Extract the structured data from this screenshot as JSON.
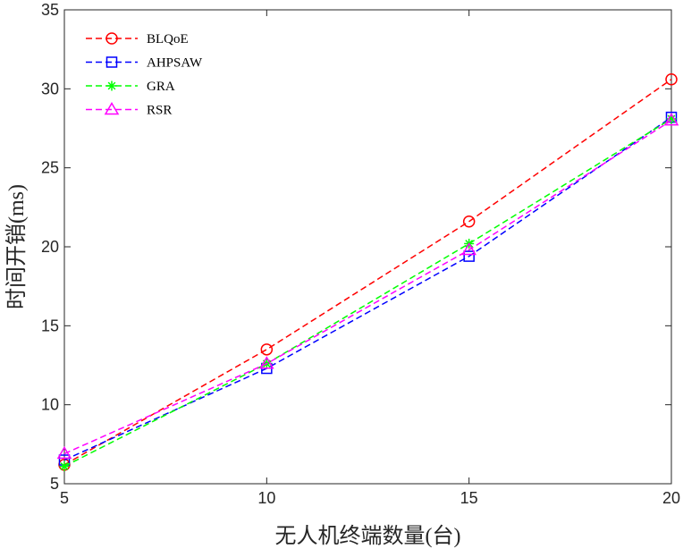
{
  "chart_data": {
    "type": "line",
    "xlabel": "无人机终端数量(台)",
    "ylabel": "时间开销(ms)",
    "x": [
      5,
      10,
      15,
      20
    ],
    "xticks": [
      5,
      10,
      15,
      20
    ],
    "yticks": [
      5,
      10,
      15,
      20,
      25,
      30,
      35
    ],
    "xlim": [
      5,
      20
    ],
    "ylim": [
      5,
      35
    ],
    "grid": false,
    "legend_position": "top-left",
    "series": [
      {
        "name": "BLQoE",
        "values": [
          6.2,
          13.5,
          21.6,
          30.6
        ],
        "color": "#ff0000",
        "marker": "circle"
      },
      {
        "name": "AHPSAW",
        "values": [
          6.5,
          12.3,
          19.4,
          28.2
        ],
        "color": "#0000ff",
        "marker": "square"
      },
      {
        "name": "GRA",
        "values": [
          6.1,
          12.6,
          20.2,
          28.1
        ],
        "color": "#00ff00",
        "marker": "star"
      },
      {
        "name": "RSR",
        "values": [
          6.9,
          12.6,
          19.8,
          28.0
        ],
        "color": "#ff00ff",
        "marker": "triangle"
      }
    ]
  }
}
